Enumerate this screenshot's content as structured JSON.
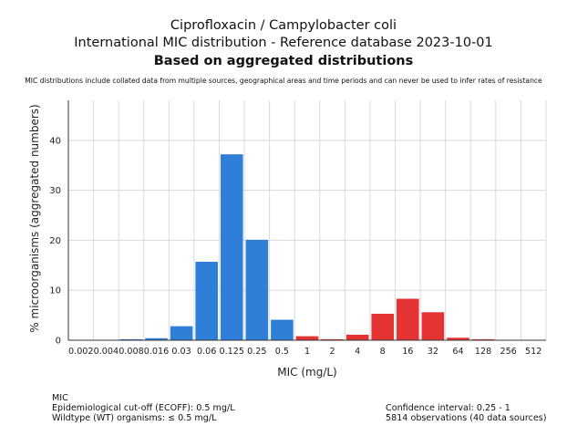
{
  "header": {
    "title_line1": "Ciprofloxacin / Campylobacter coli",
    "title_line2": "International MIC distribution - Reference database 2023-10-01",
    "title_line3": "Based on aggregated distributions",
    "note": "MIC distributions include collated data from multiple sources, geographical areas and time periods and can never be used to infer rates of resistance"
  },
  "chart_data": {
    "type": "bar",
    "xlabel": "MIC (mg/L)",
    "ylabel": "% microorganisms (aggregated numbers)",
    "ylim": [
      0,
      48
    ],
    "yticks": [
      0,
      10,
      20,
      30,
      40
    ],
    "grid": true,
    "categories": [
      "0.002",
      "0.004",
      "0.008",
      "0.016",
      "0.03",
      "0.06",
      "0.125",
      "0.25",
      "0.5",
      "1",
      "2",
      "4",
      "8",
      "16",
      "32",
      "64",
      "128",
      "256",
      "512"
    ],
    "values": [
      0,
      0,
      0.2,
      0.4,
      2.8,
      15.7,
      37.2,
      20.1,
      4.1,
      0.8,
      0.2,
      1.1,
      5.3,
      8.3,
      5.6,
      0.5,
      0.2,
      0,
      0
    ],
    "bar_colors": [
      "#2f7fd8",
      "#2f7fd8",
      "#2f7fd8",
      "#2f7fd8",
      "#2f7fd8",
      "#2f7fd8",
      "#2f7fd8",
      "#2f7fd8",
      "#2f7fd8",
      "#e53232",
      "#e53232",
      "#e53232",
      "#e53232",
      "#e53232",
      "#e53232",
      "#e53232",
      "#e53232",
      "#e53232",
      "#e53232"
    ],
    "colors": {
      "wildtype": "#2f7fd8",
      "non_wildtype": "#e53232",
      "grid": "#d9d9d9",
      "axis": "#333333"
    }
  },
  "footer": {
    "mic_label": "MIC",
    "ecoff": "Epidemiological cut-off (ECOFF): 0.5 mg/L",
    "wildtype": "Wildtype (WT) organisms: ≤ 0.5 mg/L",
    "confidence": "Confidence interval: 0.25 - 1",
    "observations": "5814 observations (40 data sources)"
  }
}
